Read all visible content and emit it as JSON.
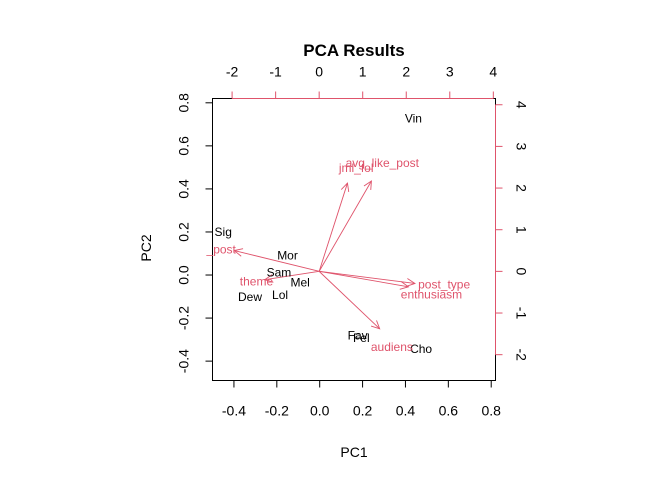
{
  "chart_data": {
    "type": "scatter",
    "title": "PCA Results",
    "xlabel": "PC1",
    "ylabel": "PC2",
    "xlim": [
      -0.5,
      0.82
    ],
    "ylim": [
      -0.49,
      0.82
    ],
    "secondary_xlim": [
      -2.45,
      4.05
    ],
    "secondary_ylim": [
      -2.62,
      4.15
    ],
    "x_ticks": [
      "-0.4",
      "-0.2",
      "0.0",
      "0.2",
      "0.4",
      "0.6",
      "0.8"
    ],
    "y_ticks": [
      "-0.4",
      "-0.2",
      "0.0",
      "0.2",
      "0.4",
      "0.6",
      "0.8"
    ],
    "top_ticks": [
      "-2",
      "-1",
      "0",
      "1",
      "2",
      "3",
      "4"
    ],
    "right_ticks": [
      "-2",
      "-1",
      "0",
      "1",
      "2",
      "3",
      "4"
    ],
    "grid": false,
    "observations": [
      {
        "label": "Vin",
        "x": 0.437,
        "y": 0.727
      },
      {
        "label": "Sig",
        "x": -0.45,
        "y": 0.2
      },
      {
        "label": "Mor",
        "x": -0.15,
        "y": 0.09
      },
      {
        "label": "Sam",
        "x": -0.19,
        "y": 0.012
      },
      {
        "label": "Mel",
        "x": -0.091,
        "y": -0.034
      },
      {
        "label": "Dew",
        "x": -0.325,
        "y": -0.102
      },
      {
        "label": "Lol",
        "x": -0.185,
        "y": -0.093
      },
      {
        "label": "Fav",
        "x": 0.177,
        "y": -0.282
      },
      {
        "label": "Fel",
        "x": 0.194,
        "y": -0.292
      },
      {
        "label": "Cho",
        "x": 0.473,
        "y": -0.343
      }
    ],
    "loadings": [
      {
        "label": "avg_like_post",
        "x": 1.2,
        "y": 2.17,
        "label_x": 1.45,
        "label_y": 2.6
      },
      {
        "label": "jml_fol",
        "x": 0.65,
        "y": 2.12,
        "label_x": 0.85,
        "label_y": 2.48
      },
      {
        "label": "_post",
        "x": -1.95,
        "y": 0.5,
        "label_x": -2.25,
        "label_y": 0.53
      },
      {
        "label": "theme",
        "x": -1.25,
        "y": -0.2,
        "label_x": -1.44,
        "label_y": -0.24
      },
      {
        "label": "post_type",
        "x": 2.2,
        "y": -0.29,
        "label_x": 2.87,
        "label_y": -0.31
      },
      {
        "label": "enthusiasm",
        "x": 2.05,
        "y": -0.37,
        "label_x": 2.58,
        "label_y": -0.56
      },
      {
        "label": "audiens",
        "x": 1.39,
        "y": -1.38,
        "label_x": 1.67,
        "label_y": -1.82
      }
    ]
  }
}
